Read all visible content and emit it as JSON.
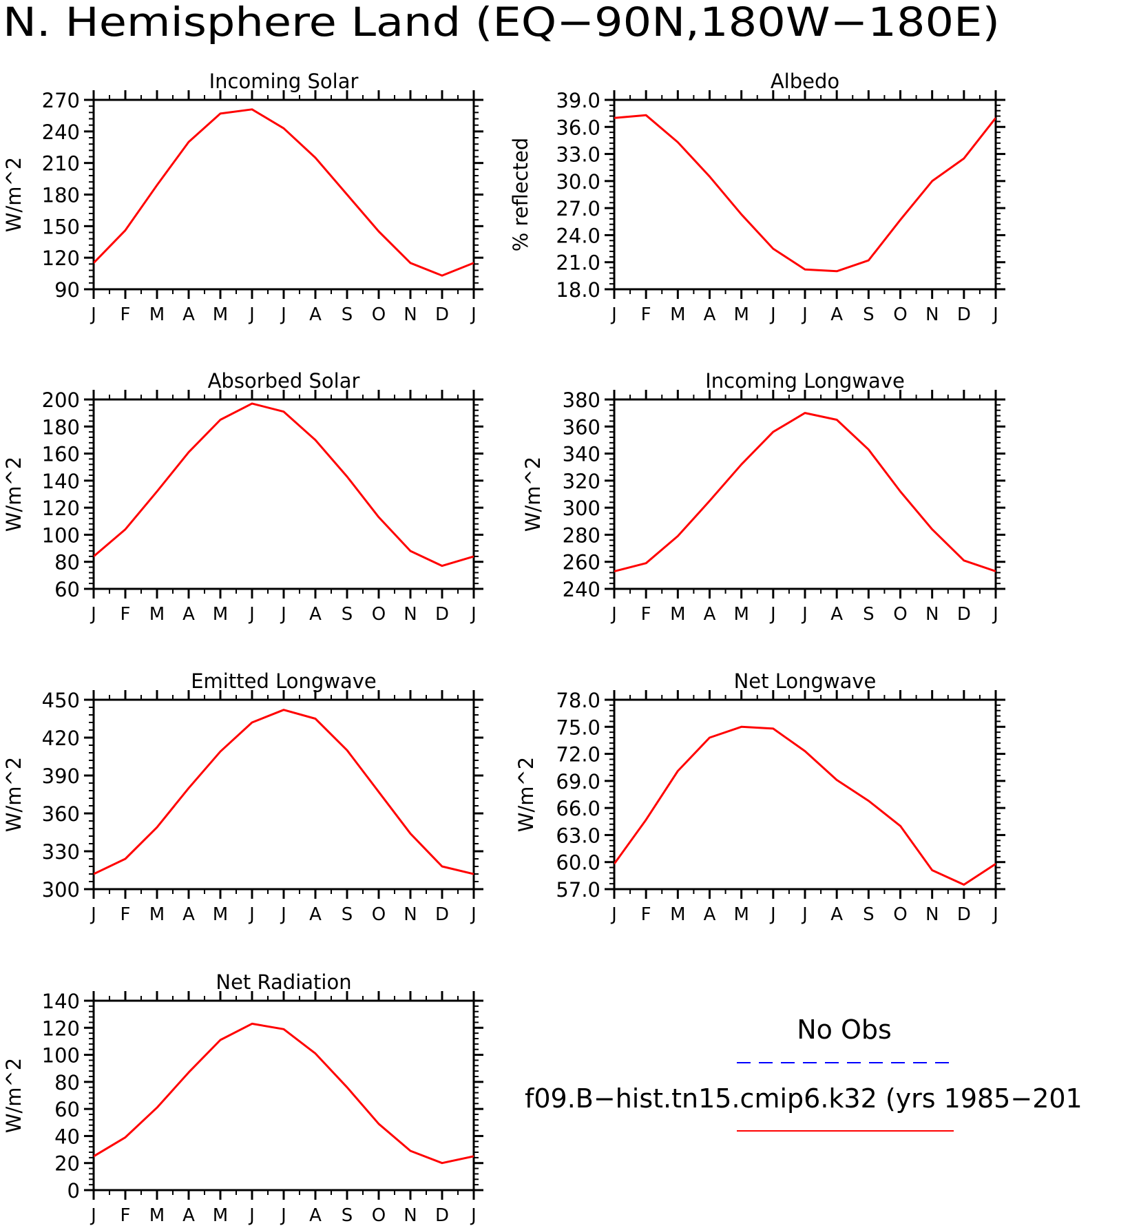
{
  "figure": {
    "title": "N. Hemisphere Land (EQ−90N,180W−180E)",
    "month_labels": [
      "J",
      "F",
      "M",
      "A",
      "M",
      "J",
      "J",
      "A",
      "S",
      "O",
      "N",
      "D",
      "J"
    ],
    "line_color": "#ff0000",
    "obs_color": "#0000ff"
  },
  "legend": {
    "obs_label": "No Obs",
    "model_label": "f09.B−hist.tn15.cmip6.k32 (yrs 1985−201"
  },
  "chart_data": [
    {
      "type": "line",
      "title": "Incoming Solar",
      "ylabel": "W/m^2",
      "ylim": [
        90,
        270
      ],
      "yticks": [
        90,
        120,
        150,
        180,
        210,
        240,
        270
      ],
      "ytick_labels": [
        "90",
        "120",
        "150",
        "180",
        "210",
        "240",
        "270"
      ],
      "categories": [
        "J",
        "F",
        "M",
        "A",
        "M",
        "J",
        "J",
        "A",
        "S",
        "O",
        "N",
        "D",
        "J"
      ],
      "series": [
        {
          "values": [
            115,
            146,
            189,
            230,
            257,
            261,
            243,
            215,
            180,
            145,
            115,
            103,
            115
          ]
        }
      ]
    },
    {
      "type": "line",
      "title": "Albedo",
      "ylabel": "% reflected",
      "ylim": [
        18,
        39
      ],
      "yticks": [
        18,
        21,
        24,
        27,
        30,
        33,
        36,
        39
      ],
      "ytick_labels": [
        "18.0",
        "21.0",
        "24.0",
        "27.0",
        "30.0",
        "33.0",
        "36.0",
        "39.0"
      ],
      "categories": [
        "J",
        "F",
        "M",
        "A",
        "M",
        "J",
        "J",
        "A",
        "S",
        "O",
        "N",
        "D",
        "J"
      ],
      "series": [
        {
          "values": [
            37.0,
            37.3,
            34.3,
            30.5,
            26.3,
            22.5,
            20.2,
            20.0,
            21.2,
            25.7,
            30.0,
            32.5,
            37.0
          ]
        }
      ]
    },
    {
      "type": "line",
      "title": "Absorbed Solar",
      "ylabel": "W/m^2",
      "ylim": [
        60,
        200
      ],
      "yticks": [
        60,
        80,
        100,
        120,
        140,
        160,
        180,
        200
      ],
      "ytick_labels": [
        "60",
        "80",
        "100",
        "120",
        "140",
        "160",
        "180",
        "200"
      ],
      "categories": [
        "J",
        "F",
        "M",
        "A",
        "M",
        "J",
        "J",
        "A",
        "S",
        "O",
        "N",
        "D",
        "J"
      ],
      "series": [
        {
          "values": [
            84,
            104,
            132,
            161,
            185,
            197,
            191,
            170,
            143,
            113,
            88,
            77,
            84
          ]
        }
      ]
    },
    {
      "type": "line",
      "title": "Incoming Longwave",
      "ylabel": "W/m^2",
      "ylim": [
        240,
        380
      ],
      "yticks": [
        240,
        260,
        280,
        300,
        320,
        340,
        360,
        380
      ],
      "ytick_labels": [
        "240",
        "260",
        "280",
        "300",
        "320",
        "340",
        "360",
        "380"
      ],
      "categories": [
        "J",
        "F",
        "M",
        "A",
        "M",
        "J",
        "J",
        "A",
        "S",
        "O",
        "N",
        "D",
        "J"
      ],
      "series": [
        {
          "values": [
            253,
            259,
            279,
            305,
            332,
            356,
            370,
            365,
            343,
            312,
            284,
            261,
            253
          ]
        }
      ]
    },
    {
      "type": "line",
      "title": "Emitted Longwave",
      "ylabel": "W/m^2",
      "ylim": [
        300,
        450
      ],
      "yticks": [
        300,
        330,
        360,
        390,
        420,
        450
      ],
      "ytick_labels": [
        "300",
        "330",
        "360",
        "390",
        "420",
        "450"
      ],
      "categories": [
        "J",
        "F",
        "M",
        "A",
        "M",
        "J",
        "J",
        "A",
        "S",
        "O",
        "N",
        "D",
        "J"
      ],
      "series": [
        {
          "values": [
            312,
            324,
            349,
            380,
            409,
            432,
            442,
            435,
            410,
            377,
            344,
            318,
            312
          ]
        }
      ]
    },
    {
      "type": "line",
      "title": "Net Longwave",
      "ylabel": "W/m^2",
      "ylim": [
        57,
        78
      ],
      "yticks": [
        57,
        60,
        63,
        66,
        69,
        72,
        75,
        78
      ],
      "ytick_labels": [
        "57.0",
        "60.0",
        "63.0",
        "66.0",
        "69.0",
        "72.0",
        "75.0",
        "78.0"
      ],
      "categories": [
        "J",
        "F",
        "M",
        "A",
        "M",
        "J",
        "J",
        "A",
        "S",
        "O",
        "N",
        "D",
        "J"
      ],
      "series": [
        {
          "values": [
            59.8,
            64.7,
            70.1,
            73.8,
            75.0,
            74.8,
            72.3,
            69.1,
            66.8,
            64.0,
            59.1,
            57.5,
            59.8
          ]
        }
      ]
    },
    {
      "type": "line",
      "title": "Net Radiation",
      "ylabel": "W/m^2",
      "ylim": [
        0,
        140
      ],
      "yticks": [
        0,
        20,
        40,
        60,
        80,
        100,
        120,
        140
      ],
      "ytick_labels": [
        "0",
        "20",
        "40",
        "60",
        "80",
        "100",
        "120",
        "140"
      ],
      "categories": [
        "J",
        "F",
        "M",
        "A",
        "M",
        "J",
        "J",
        "A",
        "S",
        "O",
        "N",
        "D",
        "J"
      ],
      "series": [
        {
          "values": [
            25,
            39,
            61,
            87,
            111,
            123,
            119,
            101,
            76,
            49,
            29,
            20,
            25
          ]
        }
      ]
    }
  ]
}
